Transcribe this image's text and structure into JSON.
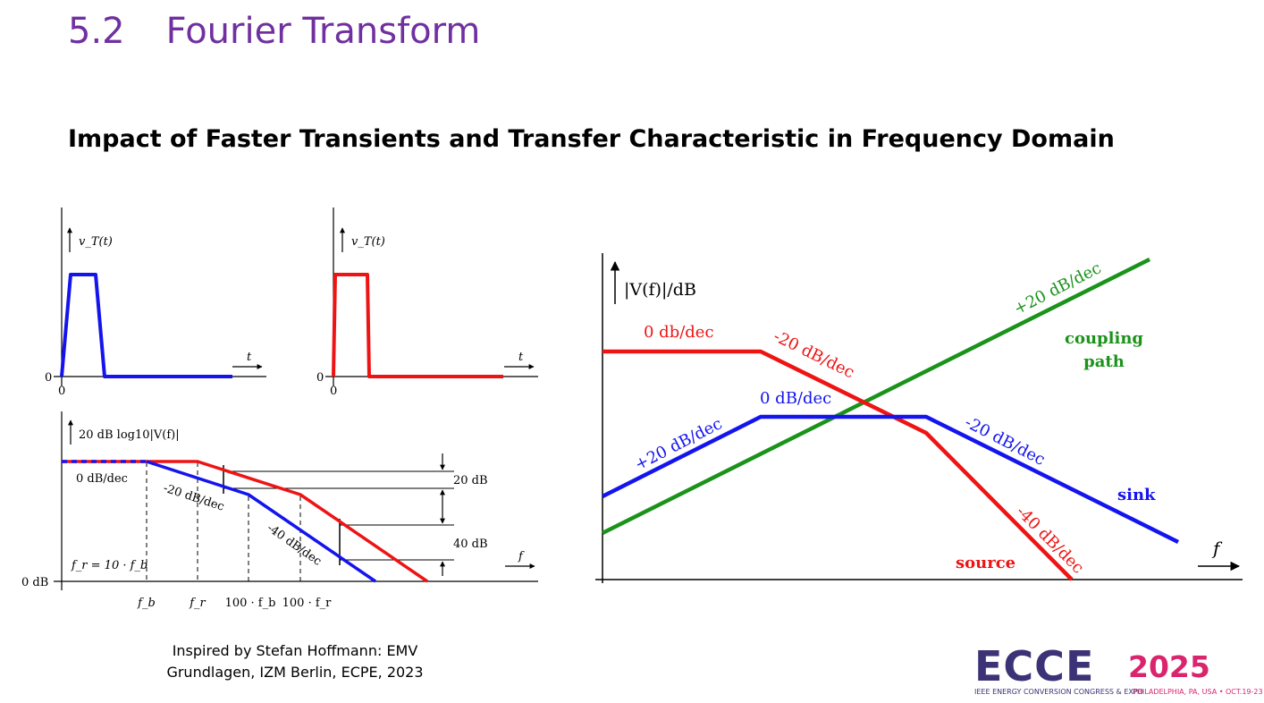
{
  "header": {
    "section_number": "5.2",
    "section_title": "Fourier Transform",
    "subtitle": "Impact of Faster Transients and Transfer Characteristic in Frequency Domain"
  },
  "colors": {
    "title": "#7030a0",
    "blue": "#1414ee",
    "red": "#ee1414",
    "green": "#1a931a"
  },
  "pulse_plots": {
    "ylabel": "v_T(t)",
    "xlabel": "t",
    "zero": "0"
  },
  "bode_plot": {
    "ylabel": "20 dB log10|V(f)|",
    "xlabel": "f",
    "zero_db": "0 dB",
    "slope_flat": "0 dB/dec",
    "slope_20": "-20 dB/dec",
    "slope_40": "-40 dB/dec",
    "delta_20": "20 dB",
    "delta_40": "40 dB",
    "relation": "f_r = 10 · f_b",
    "tick_fb": "f_b",
    "tick_fr": "f_r",
    "tick_100fb": "100 · f_b",
    "tick_100fr": "100 · f_r"
  },
  "coupling_plot": {
    "ylabel": "|V(f)|/dB",
    "xlabel": "f",
    "source_flat": "0 db/dec",
    "source_slope1": "-20 dB/dec",
    "source_slope2": "-40 dB/dec",
    "sink_rise": "+20 dB/dec",
    "sink_flat": "0 dB/dec",
    "sink_fall": "-20 dB/dec",
    "coupling_rise": "+20 dB/dec",
    "label_coupling_1": "coupling",
    "label_coupling_2": "path",
    "label_sink": "sink",
    "label_source": "source"
  },
  "credit": {
    "line1": "Inspired by Stefan Hoffmann: EMV",
    "line2": "Grundlagen, IZM Berlin, ECPE, 2023"
  },
  "logo": {
    "word": "ECCE",
    "year": "2025",
    "tagline": "IEEE ENERGY CONVERSION CONGRESS & EXPO",
    "place": "PHILADELPHIA, PA, USA • OCT.19-23"
  }
}
